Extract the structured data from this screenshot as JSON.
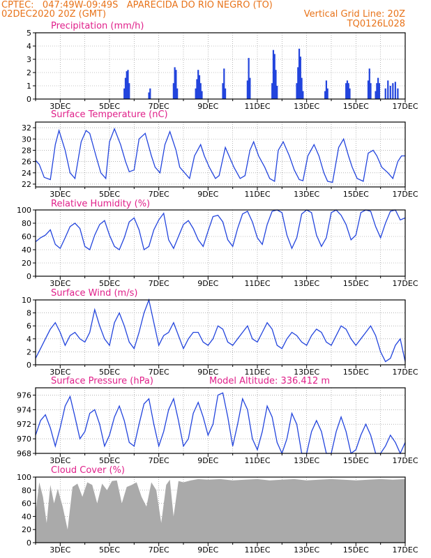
{
  "header": {
    "line1_left": "CPTEC:   047:49W-09:49S   APARECIDA DO RIO NEGRO (TO)",
    "line2_left": "02DEC2020 20Z (GMT)",
    "line2_right": "Vertical Grid Line: 20Z",
    "line3_right": "TQ0126L028"
  },
  "x_axis": {
    "start_day": 2,
    "end_day": 17,
    "tick_labels": [
      "3DEC",
      "5DEC",
      "7DEC",
      "9DEC",
      "11DEC",
      "13DEC",
      "15DEC",
      "17DEC"
    ]
  },
  "colors": {
    "line": "#2244dd",
    "bar": "#2244dd",
    "cloud": "#aaaaaa",
    "title": "#e0208a",
    "header": "#e8731a"
  },
  "chart_data": [
    {
      "type": "bar",
      "title": "Precipitation (mm/h)",
      "ylim": [
        0,
        5
      ],
      "yticks": [
        0,
        1,
        2,
        3,
        4,
        5
      ],
      "x": [
        5.6,
        5.65,
        5.7,
        5.75,
        5.8,
        6.6,
        6.65,
        7.6,
        7.65,
        7.7,
        7.75,
        8.5,
        8.55,
        8.6,
        8.65,
        8.7,
        8.75,
        9.6,
        9.65,
        9.7,
        10.6,
        10.65,
        10.7,
        11.6,
        11.65,
        11.7,
        11.75,
        11.8,
        12.6,
        12.65,
        12.7,
        12.75,
        12.8,
        12.85,
        13.75,
        13.8,
        13.85,
        14.6,
        14.65,
        14.7,
        14.75,
        15.5,
        15.55,
        15.6,
        15.8,
        15.85,
        15.9,
        15.95,
        16.2,
        16.3,
        16.4,
        16.5,
        16.6,
        16.7
      ],
      "values": [
        0.8,
        1.6,
        2.1,
        2.2,
        1.2,
        0.5,
        0.8,
        1.2,
        2.4,
        2.2,
        0.8,
        0.8,
        1.5,
        2.2,
        1.8,
        1.2,
        0.6,
        1.2,
        2.3,
        0.8,
        1.4,
        3.1,
        1.6,
        1.2,
        3.7,
        3.4,
        2.2,
        1.0,
        1.2,
        2.4,
        3.8,
        3.2,
        1.6,
        0.6,
        0.6,
        1.4,
        0.8,
        1.2,
        1.4,
        1.2,
        0.8,
        1.4,
        2.3,
        1.2,
        0.6,
        1.2,
        1.6,
        1.2,
        0.8,
        1.4,
        1.0,
        1.2,
        1.3,
        0.8
      ]
    },
    {
      "type": "line",
      "title": "Surface Temperature (nC)",
      "ylim": [
        21.5,
        33
      ],
      "yticks": [
        22,
        24,
        26,
        28,
        30,
        32
      ],
      "x": [
        2,
        2.15,
        2.35,
        2.6,
        2.8,
        2.95,
        3.2,
        3.4,
        3.6,
        3.85,
        4.05,
        4.2,
        4.45,
        4.65,
        4.85,
        5.0,
        5.2,
        5.45,
        5.65,
        5.8,
        6.0,
        6.2,
        6.45,
        6.7,
        6.85,
        7.05,
        7.25,
        7.45,
        7.7,
        7.85,
        8.05,
        8.25,
        8.45,
        8.7,
        8.85,
        9.05,
        9.3,
        9.45,
        9.7,
        9.85,
        10.05,
        10.3,
        10.5,
        10.7,
        10.85,
        11.05,
        11.3,
        11.5,
        11.7,
        11.85,
        12.05,
        12.3,
        12.5,
        12.7,
        12.85,
        13.05,
        13.3,
        13.5,
        13.7,
        13.85,
        14.05,
        14.3,
        14.5,
        14.7,
        14.85,
        15.05,
        15.3,
        15.5,
        15.7,
        15.85,
        16.05,
        16.3,
        16.5,
        16.7,
        16.85,
        17.0
      ],
      "values": [
        26.2,
        25.5,
        23.2,
        22.8,
        29.0,
        31.5,
        28.0,
        24.0,
        23.0,
        29.5,
        31.5,
        31.0,
        27.0,
        24.0,
        23.0,
        29.5,
        31.8,
        29.0,
        26.0,
        24.2,
        24.5,
        30.0,
        31.0,
        27.0,
        25.0,
        24.0,
        29.0,
        31.3,
        28.0,
        25.0,
        24.0,
        23.0,
        27.0,
        29.0,
        27.0,
        25.0,
        23.0,
        23.5,
        28.5,
        27.0,
        25.0,
        23.0,
        23.5,
        28.0,
        29.5,
        27.0,
        25.0,
        23.0,
        22.5,
        28.0,
        29.5,
        27.0,
        24.5,
        22.8,
        22.6,
        27.0,
        29.0,
        27.0,
        24.0,
        22.5,
        22.3,
        28.5,
        30.0,
        27.0,
        25.0,
        23.0,
        22.5,
        27.5,
        28.0,
        27.0,
        25.0,
        24.0,
        23.0,
        26.0,
        27.0,
        27.0
      ]
    },
    {
      "type": "line",
      "title": "Relative Humidity (%)",
      "ylim": [
        0,
        100
      ],
      "yticks": [
        0,
        20,
        40,
        60,
        80,
        100
      ],
      "x": [
        2,
        2.2,
        2.4,
        2.6,
        2.8,
        3.0,
        3.2,
        3.4,
        3.6,
        3.8,
        4.0,
        4.2,
        4.4,
        4.6,
        4.8,
        5.0,
        5.2,
        5.4,
        5.6,
        5.8,
        6.0,
        6.2,
        6.4,
        6.6,
        6.8,
        7.0,
        7.2,
        7.4,
        7.6,
        7.8,
        8.0,
        8.2,
        8.4,
        8.6,
        8.8,
        9.0,
        9.2,
        9.4,
        9.6,
        9.8,
        10.0,
        10.2,
        10.4,
        10.6,
        10.8,
        11.0,
        11.2,
        11.4,
        11.6,
        11.8,
        12.0,
        12.2,
        12.4,
        12.6,
        12.8,
        13.0,
        13.2,
        13.4,
        13.6,
        13.8,
        14.0,
        14.2,
        14.4,
        14.6,
        14.8,
        15.0,
        15.2,
        15.4,
        15.6,
        15.8,
        16.0,
        16.2,
        16.4,
        16.6,
        16.8,
        17.0
      ],
      "values": [
        52,
        58,
        62,
        70,
        48,
        42,
        58,
        75,
        80,
        72,
        45,
        40,
        62,
        78,
        84,
        62,
        45,
        40,
        58,
        82,
        88,
        70,
        40,
        45,
        70,
        85,
        95,
        55,
        42,
        60,
        78,
        84,
        72,
        55,
        45,
        68,
        90,
        92,
        82,
        55,
        45,
        72,
        94,
        98,
        82,
        58,
        48,
        78,
        98,
        100,
        96,
        62,
        42,
        58,
        94,
        100,
        96,
        62,
        45,
        58,
        96,
        100,
        92,
        78,
        55,
        62,
        96,
        100,
        98,
        75,
        58,
        80,
        98,
        100,
        85,
        88
      ]
    },
    {
      "type": "line",
      "title": "Surface Wind (m/s)",
      "ylim": [
        0,
        10
      ],
      "yticks": [
        0,
        2,
        4,
        6,
        8,
        10
      ],
      "x": [
        2,
        2.2,
        2.4,
        2.6,
        2.8,
        3.0,
        3.2,
        3.4,
        3.6,
        3.8,
        4.0,
        4.2,
        4.4,
        4.6,
        4.8,
        5.0,
        5.2,
        5.4,
        5.6,
        5.8,
        6.0,
        6.2,
        6.4,
        6.6,
        6.8,
        7.0,
        7.2,
        7.4,
        7.6,
        7.8,
        8.0,
        8.2,
        8.4,
        8.6,
        8.8,
        9.0,
        9.2,
        9.4,
        9.6,
        9.8,
        10.0,
        10.2,
        10.4,
        10.6,
        10.8,
        11.0,
        11.2,
        11.4,
        11.6,
        11.8,
        12.0,
        12.2,
        12.4,
        12.6,
        12.8,
        13.0,
        13.2,
        13.4,
        13.6,
        13.8,
        14.0,
        14.2,
        14.4,
        14.6,
        14.8,
        15.0,
        15.2,
        15.4,
        15.6,
        15.8,
        16.0,
        16.2,
        16.4,
        16.6,
        16.8,
        17.0
      ],
      "values": [
        1.0,
        2.5,
        4.0,
        5.5,
        6.5,
        5.0,
        3.0,
        4.5,
        5.0,
        4.0,
        3.5,
        5.0,
        8.5,
        6.0,
        4.0,
        3.0,
        6.5,
        8.0,
        6.0,
        3.5,
        2.5,
        5.0,
        8.0,
        10.0,
        6.5,
        3.0,
        4.5,
        5.0,
        6.5,
        4.5,
        2.5,
        4.0,
        5.0,
        5.0,
        3.5,
        3.0,
        4.0,
        6.0,
        5.5,
        3.5,
        3.0,
        4.0,
        5.0,
        6.0,
        4.0,
        3.5,
        5.0,
        6.5,
        5.5,
        3.0,
        2.5,
        4.0,
        5.0,
        4.5,
        3.5,
        3.0,
        4.5,
        5.5,
        5.0,
        3.5,
        3.0,
        4.5,
        6.0,
        5.5,
        4.0,
        3.0,
        4.0,
        5.0,
        6.0,
        4.5,
        2.0,
        0.5,
        1.0,
        3.0,
        4.0,
        0.5
      ]
    },
    {
      "type": "line",
      "title": "Surface Pressure (hPa)",
      "annotation": "Model Altitude: 336.412 m",
      "ylim": [
        968,
        977
      ],
      "yticks": [
        968,
        970,
        972,
        974,
        976
      ],
      "x": [
        2,
        2.2,
        2.4,
        2.6,
        2.8,
        3.0,
        3.2,
        3.4,
        3.6,
        3.8,
        4.0,
        4.2,
        4.4,
        4.6,
        4.8,
        5.0,
        5.2,
        5.4,
        5.6,
        5.8,
        6.0,
        6.2,
        6.4,
        6.6,
        6.8,
        7.0,
        7.2,
        7.4,
        7.6,
        7.8,
        8.0,
        8.2,
        8.4,
        8.6,
        8.8,
        9.0,
        9.2,
        9.4,
        9.6,
        9.8,
        10.0,
        10.2,
        10.4,
        10.6,
        10.8,
        11.0,
        11.2,
        11.4,
        11.6,
        11.8,
        12.0,
        12.2,
        12.4,
        12.6,
        12.8,
        13.0,
        13.2,
        13.4,
        13.6,
        13.8,
        14.0,
        14.2,
        14.4,
        14.6,
        14.8,
        15.0,
        15.2,
        15.4,
        15.6,
        15.8,
        16.0,
        16.2,
        16.4,
        16.6,
        16.8,
        17.0
      ],
      "values": [
        970.5,
        972.5,
        973.3,
        971.5,
        969.0,
        971.5,
        974.5,
        975.8,
        973.0,
        970.0,
        971.0,
        973.5,
        974.0,
        972.0,
        969.0,
        970.5,
        973.0,
        974.5,
        972.5,
        969.5,
        969.0,
        972.0,
        974.8,
        975.5,
        972.0,
        969.0,
        971.0,
        974.0,
        975.5,
        972.5,
        969.0,
        970.0,
        973.5,
        975.0,
        973.0,
        970.5,
        972.0,
        976.0,
        976.3,
        973.0,
        969.0,
        972.0,
        975.5,
        974.0,
        970.0,
        968.5,
        971.0,
        974.5,
        973.0,
        969.5,
        968.0,
        970.0,
        973.5,
        972.0,
        968.0,
        968.0,
        971.0,
        972.5,
        971.0,
        968.0,
        968.0,
        971.0,
        973.0,
        971.0,
        968.0,
        968.5,
        970.5,
        972.0,
        970.5,
        968.0,
        968.0,
        969.0,
        970.5,
        969.5,
        968.0,
        969.5
      ]
    },
    {
      "type": "area",
      "title": "Cloud Cover (%)",
      "ylim": [
        0,
        100
      ],
      "yticks": [
        0,
        20,
        40,
        60,
        80,
        100
      ],
      "x": [
        2,
        2.15,
        2.3,
        2.45,
        2.6,
        2.75,
        2.9,
        3.1,
        3.3,
        3.5,
        3.7,
        3.9,
        4.1,
        4.3,
        4.5,
        4.7,
        4.9,
        5.1,
        5.3,
        5.5,
        5.7,
        5.9,
        6.1,
        6.3,
        6.5,
        6.7,
        6.9,
        7.1,
        7.3,
        7.45,
        7.6,
        7.8,
        8.0,
        8.3,
        8.6,
        9.0,
        9.5,
        10.0,
        10.5,
        11.0,
        11.5,
        12.0,
        12.5,
        13.0,
        13.5,
        14.0,
        14.5,
        15.0,
        15.5,
        16.0,
        16.5,
        17.0
      ],
      "values": [
        45,
        92,
        70,
        30,
        88,
        60,
        82,
        55,
        20,
        85,
        90,
        70,
        92,
        88,
        60,
        90,
        80,
        94,
        95,
        60,
        85,
        88,
        92,
        70,
        55,
        92,
        80,
        30,
        88,
        96,
        40,
        94,
        92,
        95,
        97,
        96,
        97,
        95,
        96,
        97,
        95,
        96,
        97,
        95,
        96,
        97,
        96,
        95,
        96,
        97,
        96,
        97
      ]
    }
  ]
}
